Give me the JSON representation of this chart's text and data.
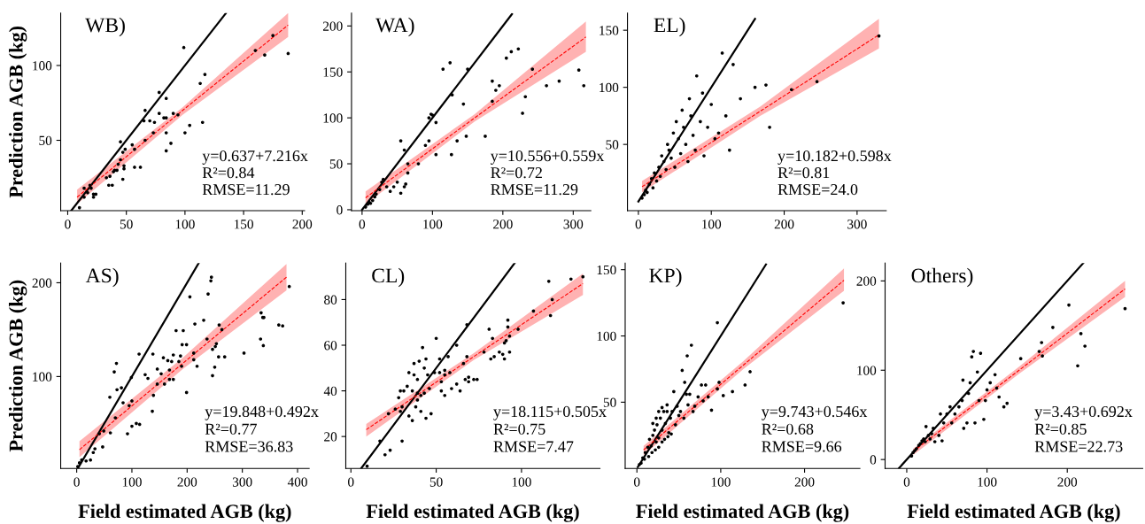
{
  "chart_data": [
    {
      "type": "scatter",
      "title": "WB)",
      "ylabel": "Prediction AGB (kg)",
      "xlim": [
        -6,
        202
      ],
      "ylim": [
        3,
        135
      ],
      "xticks": [
        0,
        50,
        100,
        150,
        200
      ],
      "yticks": [
        50,
        100
      ],
      "annotations": [
        "y=0.637+7.216x",
        "R²=0.84",
        "RMSE=11.29"
      ],
      "series": [
        {
          "marker": "circle",
          "color": "#000000",
          "x": [
            10,
            14,
            14,
            17,
            19,
            20,
            22,
            22,
            24,
            33,
            35,
            36,
            38,
            39,
            40,
            42,
            43,
            45,
            45,
            47,
            47,
            48,
            48,
            49,
            55,
            57,
            57,
            62,
            65,
            66,
            66,
            70,
            73,
            74,
            78,
            78,
            82,
            84,
            84,
            84,
            84,
            88,
            90,
            94,
            99,
            100,
            104,
            113,
            117,
            115,
            160,
            168,
            175,
            188
          ],
          "values": [
            5,
            12,
            18,
            15,
            20,
            18,
            12,
            14,
            14,
            25,
            20,
            26,
            20,
            29,
            30,
            30,
            34,
            49,
            37,
            42,
            24,
            31,
            33,
            44,
            47,
            44,
            32,
            32,
            63,
            70,
            50,
            63,
            55,
            62,
            82,
            68,
            65,
            78,
            65,
            55,
            43,
            48,
            68,
            67,
            112,
            55,
            60,
            88,
            94,
            62,
            110,
            107,
            120,
            108
          ]
        },
        {
          "type": "line",
          "color": "#000000",
          "line_style": "solid",
          "x": [
            3,
            135
          ],
          "values": [
            3,
            135
          ]
        },
        {
          "type": "line",
          "color": "#ff0000",
          "line_style": "dashed",
          "x": [
            8,
            98,
            188
          ],
          "values": [
            12,
            70,
            127
          ],
          "lower": [
            7.5,
            67,
            119
          ],
          "upper": [
            17,
            72,
            135
          ]
        }
      ]
    },
    {
      "type": "scatter",
      "title": "WA)",
      "xlim": [
        -15,
        325
      ],
      "ylim": [
        -1,
        214
      ],
      "xticks": [
        0,
        100,
        200,
        300
      ],
      "yticks": [
        0,
        50,
        100,
        150,
        200
      ],
      "annotations": [
        "y=10.556+0.559x",
        "R²=0.72",
        "RMSE=11.29"
      ],
      "series": [
        {
          "marker": "circle",
          "color": "#000000",
          "x": [
            5,
            8,
            10,
            12,
            15,
            18,
            20,
            25,
            28,
            30,
            35,
            40,
            45,
            50,
            55,
            60,
            62,
            55,
            60,
            65,
            65,
            80,
            90,
            95,
            95,
            98,
            100,
            105,
            105,
            115,
            125,
            127,
            128,
            135,
            144,
            148,
            150,
            175,
            185,
            185,
            190,
            195,
            205,
            212,
            222,
            228,
            232,
            242,
            262,
            280,
            308,
            315
          ],
          "values": [
            3,
            6,
            8,
            7,
            10,
            14,
            17,
            22,
            30,
            33,
            25,
            20,
            25,
            30,
            18,
            25,
            28,
            75,
            65,
            50,
            40,
            50,
            70,
            75,
            100,
            104,
            103,
            60,
            95,
            153,
            160,
            60,
            125,
            75,
            115,
            80,
            153,
            80,
            118,
            140,
            130,
            135,
            165,
            172,
            175,
            105,
            123,
            153,
            135,
            140,
            152,
            135
          ]
        },
        {
          "type": "line",
          "color": "#000000",
          "line_style": "solid",
          "x": [
            0,
            213
          ],
          "values": [
            0,
            213
          ]
        },
        {
          "type": "line",
          "color": "#ff0000",
          "line_style": "dashed",
          "x": [
            5,
            160,
            318
          ],
          "values": [
            13,
            100,
            188
          ],
          "lower": [
            6,
            96,
            172
          ],
          "upper": [
            20,
            104,
            205
          ]
        }
      ]
    },
    {
      "type": "scatter",
      "title": "EL)",
      "xlim": [
        -15,
        340
      ],
      "ylim": [
        -8,
        165
      ],
      "xticks": [
        0,
        100,
        200,
        300
      ],
      "yticks": [
        50,
        100,
        150
      ],
      "annotations": [
        "y=10.182+0.598x",
        "R²=0.81",
        "RMSE=24.0"
      ],
      "series": [
        {
          "marker": "circle",
          "color": "#000000",
          "x": [
            5,
            8,
            10,
            12,
            15,
            18,
            20,
            22,
            25,
            28,
            30,
            32,
            35,
            38,
            40,
            42,
            45,
            48,
            50,
            52,
            55,
            58,
            60,
            62,
            65,
            68,
            70,
            72,
            75,
            78,
            80,
            85,
            88,
            90,
            95,
            100,
            105,
            110,
            115,
            120,
            125,
            130,
            140,
            160,
            175,
            180,
            210,
            245,
            330
          ],
          "values": [
            3,
            6,
            10,
            8,
            15,
            20,
            12,
            25,
            18,
            30,
            22,
            40,
            35,
            28,
            50,
            45,
            38,
            60,
            30,
            70,
            55,
            42,
            80,
            65,
            50,
            35,
            90,
            75,
            58,
            45,
            110,
            70,
            95,
            40,
            65,
            85,
            55,
            60,
            130,
            75,
            45,
            120,
            90,
            100,
            102,
            65,
            98,
            105,
            145
          ]
        },
        {
          "type": "line",
          "color": "#000000",
          "line_style": "solid",
          "x": [
            0,
            160
          ],
          "values": [
            0,
            160
          ]
        },
        {
          "type": "line",
          "color": "#ff0000",
          "line_style": "dashed",
          "x": [
            5,
            167,
            330
          ],
          "values": [
            13,
            79,
            146
          ],
          "lower": [
            8,
            75,
            134
          ],
          "upper": [
            18,
            83,
            160
          ]
        }
      ]
    },
    {
      "type": "scatter",
      "title": "AS)",
      "xlabel": "Field estimated AGB (kg)",
      "ylabel": "Prediction AGB (kg)",
      "xlim": [
        -29,
        421
      ],
      "ylim": [
        2,
        221
      ],
      "xticks": [
        0,
        100,
        200,
        300,
        400
      ],
      "yticks": [
        100,
        200
      ],
      "annotations": [
        "y=19.848+0.492x",
        "R²=0.77",
        "RMSE=36.83"
      ],
      "series": [
        {
          "marker": "circle",
          "color": "#000000",
          "x": [
            2,
            5,
            9,
            17,
            25,
            30,
            33,
            47,
            41,
            49,
            61,
            70,
            60,
            68,
            72,
            73,
            81,
            84,
            95,
            100,
            99,
            92,
            100,
            108,
            114,
            113,
            124,
            129,
            137,
            138,
            139,
            146,
            146,
            153,
            157,
            159,
            165,
            168,
            168,
            172,
            175,
            175,
            180,
            185,
            188,
            190,
            191,
            193,
            199,
            199,
            205,
            212,
            212,
            214,
            218,
            230,
            236,
            238,
            243,
            244,
            246,
            246,
            250,
            251,
            253,
            257,
            258,
            263,
            268,
            303,
            333,
            334,
            337,
            338,
            339,
            366,
            373,
            385
          ],
          "values": [
            4,
            8,
            11,
            10,
            11,
            19,
            23,
            25,
            39,
            42,
            40,
            56,
            78,
            105,
            114,
            86,
            88,
            72,
            69,
            74,
            99,
            39,
            47,
            50,
            49,
            124,
            102,
            98,
            63,
            124,
            80,
            108,
            92,
            103,
            120,
            92,
            117,
            107,
            97,
            116,
            123,
            97,
            149,
            116,
            122,
            111,
            134,
            149,
            134,
            83,
            185,
            118,
            125,
            156,
            111,
            160,
            140,
            188,
            202,
            206,
            129,
            101,
            110,
            132,
            135,
            121,
            155,
            150,
            121,
            125,
            140,
            168,
            163,
            133,
            163,
            155,
            154,
            196
          ]
        },
        {
          "type": "line",
          "color": "#000000",
          "line_style": "solid",
          "x": [
            2,
            221
          ],
          "values": [
            2,
            221
          ]
        },
        {
          "type": "line",
          "color": "#ff0000",
          "line_style": "dashed",
          "x": [
            5,
            192,
            380
          ],
          "values": [
            22,
            114,
            206
          ],
          "lower": [
            14,
            108,
            192
          ],
          "upper": [
            31,
            120,
            220
          ]
        }
      ]
    },
    {
      "type": "scatter",
      "title": "CL)",
      "xlabel": "Field estimated AGB (kg)",
      "xlim": [
        -3,
        146
      ],
      "ylim": [
        6,
        96
      ],
      "xticks": [
        0,
        50,
        100
      ],
      "yticks": [
        20,
        40,
        60,
        80
      ],
      "annotations": [
        "y=18.115+0.505x",
        "R²=0.75",
        "RMSE=7.47"
      ],
      "series": [
        {
          "marker": "circle",
          "color": "#000000",
          "x": [
            9.5,
            17,
            20,
            23,
            22,
            26,
            28,
            29,
            29,
            30,
            30,
            31,
            33,
            34,
            34,
            36,
            36,
            37,
            37,
            38,
            39,
            39,
            39,
            40,
            41,
            41,
            42,
            43,
            43,
            44,
            44,
            45,
            46,
            47,
            49,
            50,
            52,
            52,
            53,
            53,
            55,
            55,
            55,
            57,
            58,
            59,
            62,
            62,
            64,
            66,
            67,
            68,
            68,
            69,
            69,
            72,
            74,
            78,
            81,
            82,
            83,
            84,
            87,
            89,
            90,
            90,
            91,
            92,
            92,
            93,
            93,
            98,
            107,
            117,
            116,
            118,
            129,
            136
          ],
          "values": [
            7,
            18,
            12,
            14,
            30,
            32,
            37,
            40,
            31,
            33,
            18,
            40,
            42,
            29,
            48,
            27,
            40,
            47,
            52,
            33,
            36,
            45,
            39,
            53,
            31,
            38,
            59,
            50,
            39,
            54,
            28,
            47,
            41,
            30,
            48,
            63,
            48,
            54,
            40,
            44,
            47,
            38,
            49,
            55,
            48,
            41,
            43,
            60,
            40,
            52,
            45,
            69,
            55,
            46,
            44,
            45,
            45,
            57,
            67,
            54,
            63,
            55,
            57,
            56,
            54,
            61,
            62,
            68,
            71,
            64,
            57,
            67,
            75,
            73,
            88,
            80,
            89,
            90
          ]
        },
        {
          "type": "line",
          "color": "#000000",
          "line_style": "solid",
          "x": [
            6,
            96
          ],
          "values": [
            6,
            96
          ]
        },
        {
          "type": "line",
          "color": "#ff0000",
          "line_style": "dashed",
          "x": [
            9,
            72,
            136
          ],
          "values": [
            23,
            55,
            87
          ],
          "lower": [
            20,
            53.5,
            82
          ],
          "upper": [
            25.5,
            56.5,
            91.4
          ]
        }
      ]
    },
    {
      "type": "scatter",
      "title": "KP)",
      "xlabel": "Field estimated AGB (kg)",
      "xlim": [
        -14,
        266
      ],
      "ylim": [
        0,
        155
      ],
      "xticks": [
        0,
        100,
        200
      ],
      "yticks": [
        50,
        100,
        150
      ],
      "annotations": [
        "y=9.743+0.546x",
        "R²=0.68",
        "RMSE=9.66"
      ],
      "series": [
        {
          "marker": "circle",
          "color": "#000000",
          "x": [
            3,
            5,
            7,
            9,
            10,
            13,
            14,
            15,
            17,
            18,
            19,
            21,
            22,
            23,
            24,
            26,
            26,
            26,
            28,
            30,
            30,
            30,
            32,
            33,
            34,
            36,
            36,
            37,
            38,
            40,
            41,
            42,
            44,
            46,
            48,
            50,
            52,
            54,
            56,
            57,
            59,
            60,
            61,
            63,
            65,
            67,
            69,
            73,
            77,
            79,
            82,
            85,
            89,
            96,
            96,
            98,
            103,
            114,
            129,
            135,
            246,
            23,
            19
          ],
          "values": [
            3,
            4,
            8,
            7,
            12,
            16,
            9,
            22,
            17,
            12,
            25,
            29,
            14,
            20,
            33,
            23,
            16,
            43,
            38,
            29,
            20,
            46,
            43,
            22,
            34,
            48,
            43,
            24,
            27,
            38,
            26,
            43,
            58,
            33,
            47,
            40,
            43,
            74,
            38,
            65,
            56,
            85,
            48,
            56,
            93,
            43,
            47,
            54,
            63,
            51,
            63,
            54,
            44,
            110,
            60,
            65,
            55,
            58,
            63,
            73,
            125,
            38,
            34
          ]
        },
        {
          "type": "line",
          "color": "#000000",
          "line_style": "solid",
          "x": [
            1,
            154
          ],
          "values": [
            1,
            154
          ]
        },
        {
          "type": "line",
          "color": "#ff0000",
          "line_style": "dashed",
          "x": [
            8,
            127,
            247
          ],
          "values": [
            14,
            78,
            142
          ],
          "lower": [
            10,
            75,
            134
          ],
          "upper": [
            17,
            81,
            151
          ]
        }
      ]
    },
    {
      "type": "scatter",
      "title": "Others)",
      "xlabel": "Field estimated AGB (kg)",
      "xlim": [
        -27,
        294
      ],
      "ylim": [
        -10,
        220
      ],
      "xticks": [
        0,
        100,
        200
      ],
      "yticks": [
        0,
        100,
        200
      ],
      "annotations": [
        "y=3.43+0.692x",
        "R²=0.85",
        "RMSE=22.73"
      ],
      "series": [
        {
          "marker": "circle",
          "color": "#000000",
          "x": [
            6,
            8,
            10,
            12,
            15,
            17,
            19,
            21,
            23,
            24,
            27,
            29,
            31,
            33,
            35,
            40,
            42,
            44,
            46,
            50,
            54,
            56,
            60,
            65,
            69,
            70,
            71,
            75,
            77,
            79,
            81,
            83,
            85,
            88,
            90,
            92,
            96,
            98,
            100,
            104,
            110,
            112,
            115,
            121,
            125,
            142,
            165,
            168,
            169,
            182,
            202,
            213,
            217,
            222,
            272
          ],
          "values": [
            4,
            8,
            10,
            12,
            16,
            18,
            21,
            23,
            20,
            37,
            27,
            23,
            29,
            35,
            20,
            27,
            51,
            21,
            41,
            51,
            59,
            41,
            51,
            59,
            66,
            89,
            35,
            41,
            74,
            86,
            115,
            121,
            41,
            98,
            66,
            119,
            45,
            66,
            78,
            86,
            95,
            80,
            70,
            59,
            63,
            113,
            121,
            131,
            116,
            148,
            173,
            105,
            141,
            127,
            169
          ]
        },
        {
          "type": "line",
          "color": "#000000",
          "line_style": "solid",
          "x": [
            -10,
            220
          ],
          "values": [
            -10,
            220
          ]
        },
        {
          "type": "line",
          "color": "#ff0000",
          "line_style": "dashed",
          "x": [
            8,
            140,
            272
          ],
          "values": [
            9,
            100,
            191
          ],
          "lower": [
            5,
            96,
            182
          ],
          "upper": [
            12,
            104,
            200
          ]
        }
      ]
    }
  ]
}
